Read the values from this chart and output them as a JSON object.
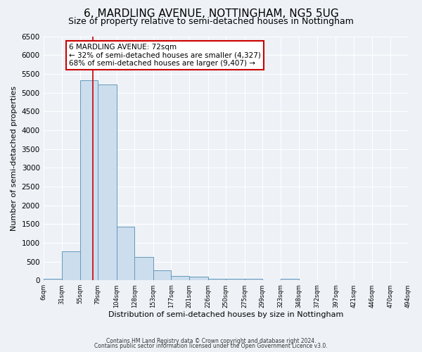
{
  "title": "6, MARDLING AVENUE, NOTTINGHAM, NG5 5UG",
  "subtitle": "Size of property relative to semi-detached houses in Nottingham",
  "xlabel": "Distribution of semi-detached houses by size in Nottingham",
  "ylabel": "Number of semi-detached properties",
  "bar_color": "#ccdded",
  "bar_edge_color": "#6699bb",
  "bin_edges": [
    6,
    31,
    55,
    79,
    104,
    128,
    153,
    177,
    201,
    226,
    250,
    275,
    299,
    323,
    348,
    372,
    397,
    421,
    446,
    470,
    494
  ],
  "bar_heights": [
    50,
    780,
    5330,
    5220,
    1420,
    620,
    270,
    120,
    100,
    50,
    50,
    50,
    0,
    50,
    0,
    0,
    0,
    0,
    0,
    0
  ],
  "property_size": 72,
  "red_line_color": "#cc0000",
  "annotation_line1": "6 MARDLING AVENUE: 72sqm",
  "annotation_line2": "← 32% of semi-detached houses are smaller (4,327)",
  "annotation_line3": "68% of semi-detached houses are larger (9,407) →",
  "annotation_box_color": "#ffffff",
  "annotation_box_edge_color": "#cc0000",
  "ylim": [
    0,
    6500
  ],
  "tick_labels": [
    "6sqm",
    "31sqm",
    "55sqm",
    "79sqm",
    "104sqm",
    "128sqm",
    "153sqm",
    "177sqm",
    "201sqm",
    "226sqm",
    "250sqm",
    "275sqm",
    "299sqm",
    "323sqm",
    "348sqm",
    "372sqm",
    "397sqm",
    "421sqm",
    "446sqm",
    "470sqm",
    "494sqm"
  ],
  "footnote1": "Contains HM Land Registry data © Crown copyright and database right 2024.",
  "footnote2": "Contains public sector information licensed under the Open Government Licence v3.0.",
  "background_color": "#eef2f7",
  "grid_color": "#ffffff",
  "title_fontsize": 11,
  "subtitle_fontsize": 9,
  "ylabel_fontsize": 8,
  "xlabel_fontsize": 8,
  "ytick_step": 500
}
